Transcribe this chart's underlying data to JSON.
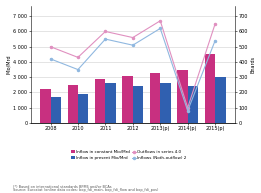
{
  "years": [
    "2008",
    "2010",
    "2011",
    "2012",
    "2013(p)",
    "2014(p)",
    "2015(p)"
  ],
  "bars_pink": [
    2200,
    2500,
    2900,
    3100,
    3300,
    3500,
    4500
  ],
  "bars_blue": [
    1700,
    1900,
    2600,
    2400,
    2600,
    2400,
    3000
  ],
  "line_pink": [
    500,
    430,
    600,
    560,
    670,
    100,
    650
  ],
  "line_blue": [
    420,
    350,
    550,
    510,
    620,
    80,
    540
  ],
  "left_yticks": [
    0,
    1000,
    2000,
    3000,
    4000,
    5000,
    6000,
    7000
  ],
  "left_tick_labels": [
    "0",
    "1 000",
    "2 000",
    "3 000",
    "4 000",
    "5 000",
    "6 000",
    "7 000"
  ],
  "right_yticks": [
    0,
    100,
    200,
    300,
    400,
    500,
    600,
    700
  ],
  "right_tick_labels": [
    "0",
    "100",
    "200",
    "300",
    "400",
    "500",
    "600",
    "700"
  ],
  "left_ylabel": "Mio/Mrd",
  "right_ylabel": "Bnards",
  "bar_pink_color": "#c83080",
  "bar_blue_color": "#3060b0",
  "line_pink_color": "#e090c0",
  "line_blue_color": "#90b8e0",
  "legend_labels": [
    "Inflow in constant Mio/Mrd",
    "Inflow in present Mio/Mrd",
    "Outflows in series 4.0",
    "Inflows (Noth-outflow) 2"
  ],
  "footnote1": "(*) Based on international standards BPM6 and/or BCAs",
  "footnote2": "Source: Eurostat (online data codes: bop_fdi_main, bop_fdi_flow and bop_fdi_pos)",
  "background_color": "#ffffff",
  "left_ylim": [
    0,
    7700
  ],
  "right_ylim": [
    0,
    770
  ]
}
